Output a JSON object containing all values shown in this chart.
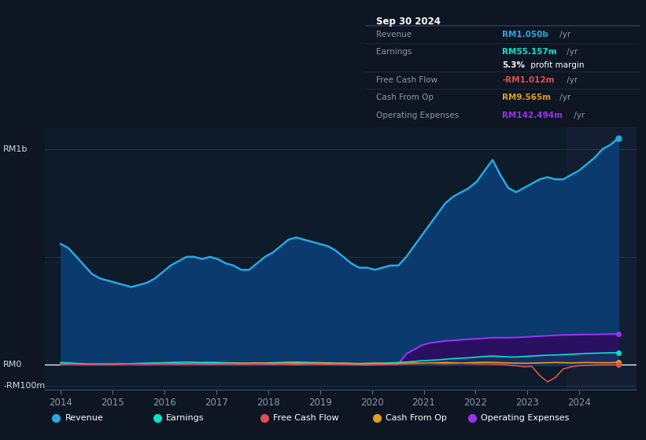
{
  "bg_color": "#0e1523",
  "plot_bg_color": "#0d1b2a",
  "grid_color": "#1e3a5f",
  "y_label_top": "RM1b",
  "y_label_mid": "RM0",
  "y_label_bot": "-RM100m",
  "x_ticks": [
    2014,
    2015,
    2016,
    2017,
    2018,
    2019,
    2020,
    2021,
    2022,
    2023,
    2024
  ],
  "revenue_color": "#29a8e0",
  "revenue_fill": "#0a3a6e",
  "earnings_color": "#00e5cc",
  "fcf_color": "#e05050",
  "cashop_color": "#e0a020",
  "opex_color": "#9933ee",
  "opex_fill": "#2a1060",
  "earnings_fill": "#005566",
  "legend_bg": "#1a2235",
  "legend_border": "#2a3a55",
  "info_bg": "#080e18",
  "info_border": "#2a3a55",
  "legend_items": [
    {
      "label": "Revenue",
      "color": "#29a8e0"
    },
    {
      "label": "Earnings",
      "color": "#00e5cc"
    },
    {
      "label": "Free Cash Flow",
      "color": "#e05050"
    },
    {
      "label": "Cash From Op",
      "color": "#e0a020"
    },
    {
      "label": "Operating Expenses",
      "color": "#9933ee"
    }
  ],
  "revenue": [
    0.56,
    0.54,
    0.5,
    0.46,
    0.42,
    0.4,
    0.39,
    0.38,
    0.37,
    0.36,
    0.37,
    0.38,
    0.4,
    0.43,
    0.46,
    0.48,
    0.5,
    0.5,
    0.49,
    0.5,
    0.49,
    0.47,
    0.46,
    0.44,
    0.44,
    0.47,
    0.5,
    0.52,
    0.55,
    0.58,
    0.59,
    0.58,
    0.57,
    0.56,
    0.55,
    0.53,
    0.5,
    0.47,
    0.45,
    0.45,
    0.44,
    0.45,
    0.46,
    0.46,
    0.5,
    0.55,
    0.6,
    0.65,
    0.7,
    0.75,
    0.78,
    0.8,
    0.82,
    0.85,
    0.9,
    0.95,
    0.88,
    0.82,
    0.8,
    0.82,
    0.84,
    0.86,
    0.87,
    0.86,
    0.86,
    0.88,
    0.9,
    0.93,
    0.96,
    1.0,
    1.02,
    1.05
  ],
  "earnings": [
    0.01,
    0.008,
    0.006,
    0.004,
    0.002,
    0.001,
    0.002,
    0.003,
    0.004,
    0.005,
    0.006,
    0.007,
    0.008,
    0.009,
    0.01,
    0.011,
    0.012,
    0.011,
    0.01,
    0.011,
    0.01,
    0.009,
    0.008,
    0.007,
    0.006,
    0.007,
    0.008,
    0.009,
    0.01,
    0.011,
    0.012,
    0.011,
    0.01,
    0.009,
    0.008,
    0.007,
    0.006,
    0.005,
    0.004,
    0.005,
    0.006,
    0.007,
    0.008,
    0.01,
    0.012,
    0.015,
    0.018,
    0.02,
    0.022,
    0.025,
    0.028,
    0.03,
    0.032,
    0.035,
    0.038,
    0.04,
    0.038,
    0.036,
    0.035,
    0.038,
    0.04,
    0.042,
    0.044,
    0.045,
    0.046,
    0.048,
    0.05,
    0.052,
    0.053,
    0.054,
    0.055,
    0.055
  ],
  "fcf": [
    0.002,
    0.003,
    0.002,
    0.001,
    0.002,
    0.003,
    0.002,
    0.001,
    0.003,
    0.004,
    0.003,
    0.002,
    0.003,
    0.004,
    0.003,
    0.002,
    0.003,
    0.004,
    0.003,
    0.002,
    0.003,
    0.004,
    0.003,
    0.002,
    0.003,
    0.004,
    0.003,
    0.002,
    0.003,
    0.002,
    0.001,
    0.002,
    0.003,
    0.002,
    0.001,
    0.002,
    0.001,
    0.0,
    -0.001,
    -0.002,
    -0.001,
    0.0,
    0.001,
    0.002,
    0.003,
    0.004,
    0.005,
    0.006,
    0.005,
    0.004,
    0.005,
    0.006,
    0.005,
    0.004,
    0.003,
    0.002,
    0.001,
    -0.002,
    -0.005,
    -0.01,
    -0.008,
    -0.05,
    -0.08,
    -0.06,
    -0.02,
    -0.01,
    -0.005,
    -0.003,
    -0.002,
    -0.001,
    -0.001,
    -0.001
  ],
  "cashop": [
    0.003,
    0.004,
    0.003,
    0.002,
    0.003,
    0.004,
    0.003,
    0.002,
    0.003,
    0.004,
    0.005,
    0.004,
    0.005,
    0.006,
    0.005,
    0.004,
    0.005,
    0.006,
    0.005,
    0.004,
    0.005,
    0.006,
    0.007,
    0.006,
    0.007,
    0.008,
    0.007,
    0.006,
    0.007,
    0.008,
    0.007,
    0.006,
    0.007,
    0.008,
    0.007,
    0.006,
    0.007,
    0.006,
    0.005,
    0.006,
    0.007,
    0.006,
    0.005,
    0.006,
    0.007,
    0.008,
    0.007,
    0.008,
    0.009,
    0.01,
    0.009,
    0.008,
    0.009,
    0.01,
    0.011,
    0.01,
    0.009,
    0.008,
    0.007,
    0.006,
    0.007,
    0.008,
    0.009,
    0.01,
    0.009,
    0.008,
    0.009,
    0.01,
    0.009,
    0.009,
    0.009,
    0.01
  ],
  "opex": [
    0.002,
    0.002,
    0.002,
    0.002,
    0.002,
    0.002,
    0.002,
    0.002,
    0.002,
    0.002,
    0.002,
    0.002,
    0.002,
    0.002,
    0.002,
    0.002,
    0.002,
    0.002,
    0.002,
    0.002,
    0.002,
    0.002,
    0.002,
    0.002,
    0.002,
    0.002,
    0.002,
    0.002,
    0.002,
    0.002,
    0.002,
    0.002,
    0.002,
    0.002,
    0.002,
    0.002,
    0.002,
    0.002,
    0.002,
    0.002,
    0.002,
    0.002,
    0.002,
    0.002,
    0.05,
    0.07,
    0.09,
    0.1,
    0.105,
    0.11,
    0.112,
    0.115,
    0.118,
    0.12,
    0.122,
    0.125,
    0.125,
    0.125,
    0.126,
    0.128,
    0.13,
    0.132,
    0.134,
    0.136,
    0.138,
    0.138,
    0.139,
    0.14,
    0.14,
    0.141,
    0.142,
    0.142
  ]
}
